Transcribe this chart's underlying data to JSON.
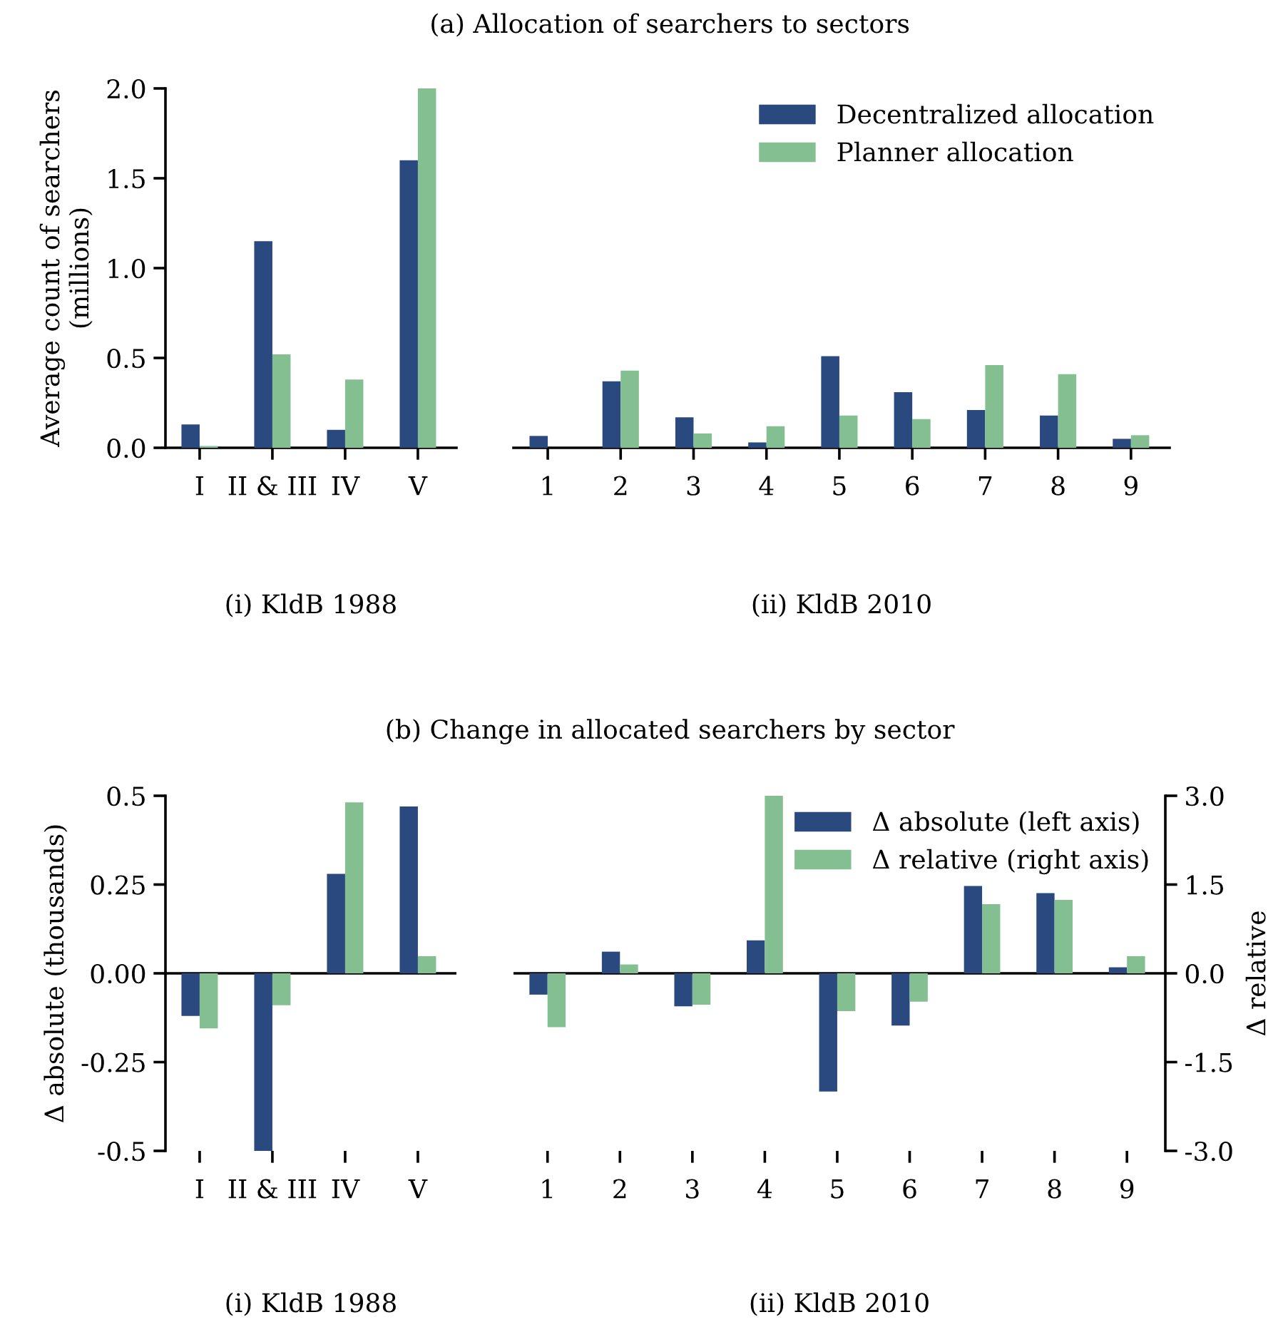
{
  "chart_data": [
    {
      "type": "bar",
      "xlabel": "(i) KldB 1988",
      "ylabel": "Average count of searchers\n(millions)",
      "categories": [
        "I",
        "II & III",
        "IV",
        "V"
      ],
      "ylim": [
        0,
        2.0
      ],
      "yticks": [
        {
          "value": 0,
          "label": "0.0"
        },
        0.5,
        {
          "value": 1,
          "label": "1.0"
        },
        1.5,
        {
          "value": 2,
          "label": "2.0"
        }
      ],
      "tick_labels": [
        "x",
        "y"
      ],
      "grid": false,
      "series": [
        {
          "color": "#2a4a7f",
          "values": [
            0.13,
            1.15,
            0.1,
            1.6
          ]
        },
        {
          "color": "#84bf91",
          "values": [
            0.01,
            0.52,
            0.38,
            2.0
          ]
        }
      ]
    },
    {
      "type": "bar",
      "title": "(a) Allocation of searchers to sectors",
      "xlabel": "(ii) KldB 2010",
      "categories": [
        "1",
        "2",
        "3",
        "4",
        "5",
        "6",
        "7",
        "8",
        "9"
      ],
      "ylim": [
        0,
        2.0
      ],
      "tick_labels": [
        "x"
      ],
      "grid": false,
      "legend": "top right",
      "series": [
        {
          "name": "Decentralized allocation",
          "color": "#2a4a7f",
          "values": [
            0.066,
            0.37,
            0.17,
            0.03,
            0.51,
            0.31,
            0.21,
            0.18,
            0.05
          ]
        },
        {
          "name": "Planner allocation",
          "color": "#84bf91",
          "values": [
            0,
            0.43,
            0.08,
            0.12,
            0.18,
            0.16,
            0.46,
            0.41,
            0.07
          ]
        }
      ]
    },
    {
      "type": "bar",
      "xlabel": "(i) KldB 1988",
      "ylabel": "Δ absolute (thousands)",
      "categories": [
        "I",
        "II & III",
        "IV",
        "V"
      ],
      "ylim": [
        -0.5,
        0.5
      ],
      "yticks": [
        {
          "value": -0.5,
          "label": "-0.5"
        },
        {
          "value": -0.25,
          "label": "-0.25"
        },
        {
          "value": 0.0,
          "label": "0.00"
        },
        {
          "value": 0.25,
          "label": "0.25"
        },
        {
          "value": 0.5,
          "label": "0.5"
        }
      ],
      "y2lim": [
        -3.0,
        3.0
      ],
      "tick_labels": [
        "x",
        "y"
      ],
      "grid": false,
      "ref_lines": [
        {
          "axis": "y",
          "value": 0,
          "color": "#000000"
        }
      ],
      "series": [
        {
          "color": "#2a4a7f",
          "values": [
            -0.12,
            -0.5,
            0.28,
            0.47
          ]
        },
        {
          "color": "#84bf91",
          "axis": "y2",
          "values": [
            -0.93,
            -0.54,
            2.89,
            0.29
          ]
        }
      ]
    },
    {
      "type": "bar",
      "title": "(b) Change in allocated searchers by sector",
      "xlabel": "(ii) KldB 2010",
      "y2label": "Δ relative",
      "categories": [
        "1",
        "2",
        "3",
        "4",
        "5",
        "6",
        "7",
        "8",
        "9"
      ],
      "ylim": [
        -0.5,
        0.5
      ],
      "y2lim": [
        -3.0,
        3.0
      ],
      "y2ticks": [
        {
          "value": -3.0,
          "label": "-3.0"
        },
        {
          "value": -1.5,
          "label": "-1.5"
        },
        {
          "value": 0.0,
          "label": "0.0"
        },
        1.5,
        {
          "value": 3.0,
          "label": "3.0"
        }
      ],
      "tick_labels": [
        "x",
        "y2"
      ],
      "grid": false,
      "ref_lines": [
        {
          "axis": "y",
          "value": 0,
          "color": "#000000"
        }
      ],
      "legend": "top right",
      "series": [
        {
          "name": "Δ absolute (left axis)",
          "color": "#2a4a7f",
          "values": [
            -0.06,
            0.061,
            -0.093,
            0.093,
            -0.333,
            -0.147,
            0.246,
            0.226,
            0.017
          ]
        },
        {
          "name": "Δ relative (right axis)",
          "color": "#84bf91",
          "axis": "y2",
          "values": [
            -0.91,
            0.15,
            -0.53,
            3.0,
            -0.64,
            -0.48,
            1.17,
            1.24,
            0.29
          ]
        }
      ]
    }
  ]
}
